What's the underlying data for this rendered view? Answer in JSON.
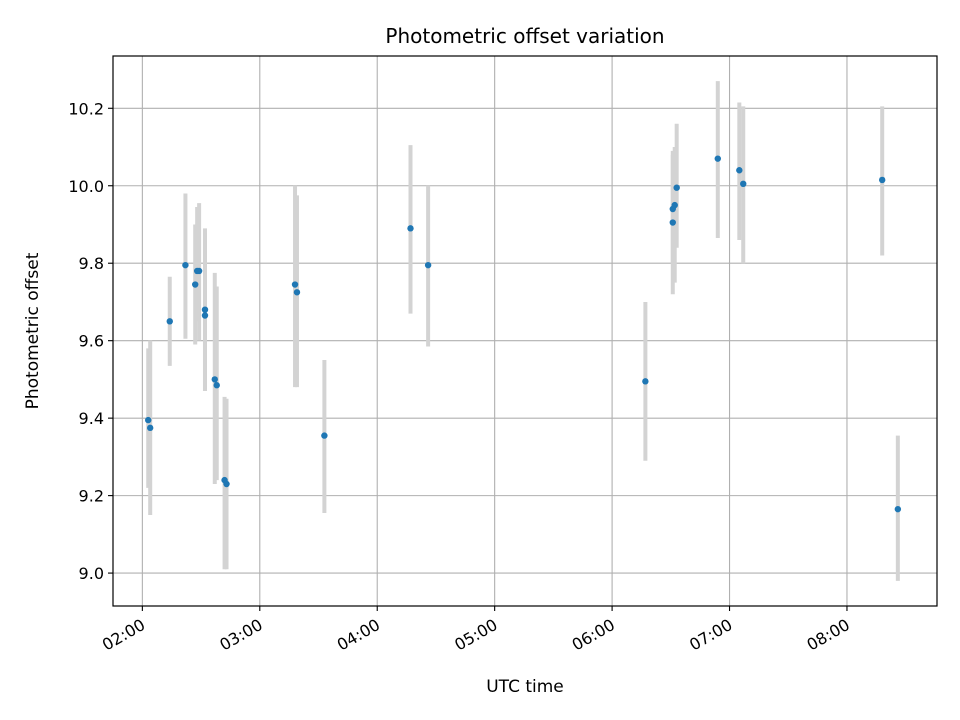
{
  "chart_data": {
    "type": "scatter",
    "title": "Photometric offset variation",
    "xlabel": "UTC time",
    "ylabel": "Photometric offset",
    "x_axis": "time",
    "xlim": [
      "01:45",
      "08:46"
    ],
    "ylim": [
      8.915,
      10.335
    ],
    "grid": true,
    "x_ticks": [
      "02:00",
      "03:00",
      "04:00",
      "05:00",
      "06:00",
      "07:00",
      "08:00"
    ],
    "y_ticks": [
      "9.0",
      "9.2",
      "9.4",
      "9.6",
      "9.8",
      "10.0",
      "10.2"
    ],
    "marker_color": "#1f77b4",
    "errorbar_color": "#d3d3d3",
    "grid_color": "#b0b0b0",
    "points": [
      {
        "x": "02:03",
        "y": 9.395,
        "yerr_low": 9.22,
        "yerr_high": 9.58
      },
      {
        "x": "02:04",
        "y": 9.375,
        "yerr_low": 9.15,
        "yerr_high": 9.6
      },
      {
        "x": "02:14",
        "y": 9.65,
        "yerr_low": 9.535,
        "yerr_high": 9.765
      },
      {
        "x": "02:22",
        "y": 9.795,
        "yerr_low": 9.605,
        "yerr_high": 9.98
      },
      {
        "x": "02:27",
        "y": 9.745,
        "yerr_low": 9.59,
        "yerr_high": 9.9
      },
      {
        "x": "02:28",
        "y": 9.78,
        "yerr_low": 9.65,
        "yerr_high": 9.945
      },
      {
        "x": "02:29",
        "y": 9.78,
        "yerr_low": 9.6,
        "yerr_high": 9.955
      },
      {
        "x": "02:32",
        "y": 9.68,
        "yerr_low": 9.47,
        "yerr_high": 9.88
      },
      {
        "x": "02:32",
        "y": 9.665,
        "yerr_low": 9.475,
        "yerr_high": 9.89
      },
      {
        "x": "02:37",
        "y": 9.5,
        "yerr_low": 9.23,
        "yerr_high": 9.775
      },
      {
        "x": "02:38",
        "y": 9.485,
        "yerr_low": 9.24,
        "yerr_high": 9.74
      },
      {
        "x": "02:42",
        "y": 9.24,
        "yerr_low": 9.01,
        "yerr_high": 9.455
      },
      {
        "x": "02:43",
        "y": 9.23,
        "yerr_low": 9.01,
        "yerr_high": 9.45
      },
      {
        "x": "03:18",
        "y": 9.745,
        "yerr_low": 9.48,
        "yerr_high": 10.0
      },
      {
        "x": "03:19",
        "y": 9.725,
        "yerr_low": 9.48,
        "yerr_high": 9.975
      },
      {
        "x": "03:33",
        "y": 9.355,
        "yerr_low": 9.155,
        "yerr_high": 9.55
      },
      {
        "x": "04:17",
        "y": 9.89,
        "yerr_low": 9.67,
        "yerr_high": 10.105
      },
      {
        "x": "04:26",
        "y": 9.795,
        "yerr_low": 9.585,
        "yerr_high": 10.0
      },
      {
        "x": "06:17",
        "y": 9.495,
        "yerr_low": 9.29,
        "yerr_high": 9.7
      },
      {
        "x": "06:31",
        "y": 9.94,
        "yerr_low": 9.8,
        "yerr_high": 10.08
      },
      {
        "x": "06:31",
        "y": 9.905,
        "yerr_low": 9.72,
        "yerr_high": 10.09
      },
      {
        "x": "06:32",
        "y": 9.95,
        "yerr_low": 9.75,
        "yerr_high": 10.1
      },
      {
        "x": "06:33",
        "y": 9.995,
        "yerr_low": 9.84,
        "yerr_high": 10.16
      },
      {
        "x": "06:54",
        "y": 10.07,
        "yerr_low": 9.865,
        "yerr_high": 10.27
      },
      {
        "x": "07:05",
        "y": 10.04,
        "yerr_low": 9.86,
        "yerr_high": 10.215
      },
      {
        "x": "07:07",
        "y": 10.005,
        "yerr_low": 9.8,
        "yerr_high": 10.205
      },
      {
        "x": "08:18",
        "y": 10.015,
        "yerr_low": 9.82,
        "yerr_high": 10.205
      },
      {
        "x": "08:26",
        "y": 9.165,
        "yerr_low": 8.98,
        "yerr_high": 9.355
      }
    ]
  }
}
